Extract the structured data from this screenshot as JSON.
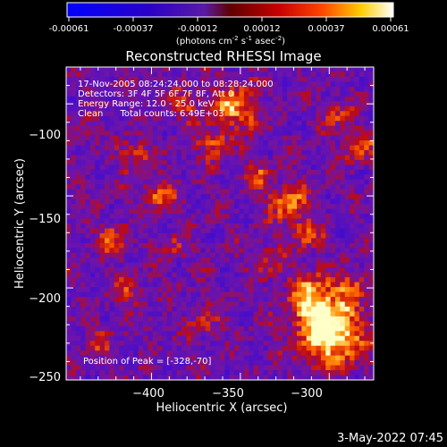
{
  "colorbar": {
    "tick_labels": [
      "-0.00061",
      "-0.00037",
      "-0.00012",
      "0.00012",
      "0.00037",
      "0.00061"
    ],
    "units_text": "(photons cm",
    "units_parts": [
      "(photons cm",
      "-2",
      " s",
      "-1",
      " asec",
      "-2",
      ")"
    ]
  },
  "chart_data": {
    "type": "heatmap",
    "title": "Reconstructed RHESSI Image",
    "xlabel": "Heliocentric X (arcsec)",
    "ylabel": "Heliocentric Y (arcsec)",
    "xlim": [
      -448,
      -275
    ],
    "ylim": [
      -250,
      -80
    ],
    "xticks": [
      -400,
      -350,
      -300
    ],
    "yticks": [
      -100,
      -150,
      -200,
      -250
    ],
    "xtick_labels": [
      "−400",
      "−350",
      "−300"
    ],
    "ytick_labels": [
      "−100",
      "−150",
      "−200",
      "−250"
    ],
    "color_range": [
      -0.00061,
      0.00061
    ],
    "peak_position": [
      -328,
      -70
    ],
    "annotations": [
      "17-Nov-2005 08:24:24.000 to 08:28:24.000",
      "Detectors: 3F 4F 5F 6F 7F 8F, Att 0",
      "Energy Range: 12.0 - 25.0 keV",
      "Clean      Total counts: 6.49E+03",
      "Position of Peak = [-328,-70]"
    ]
  },
  "footer": {
    "timestamp": "3-May-2022 07:45"
  }
}
